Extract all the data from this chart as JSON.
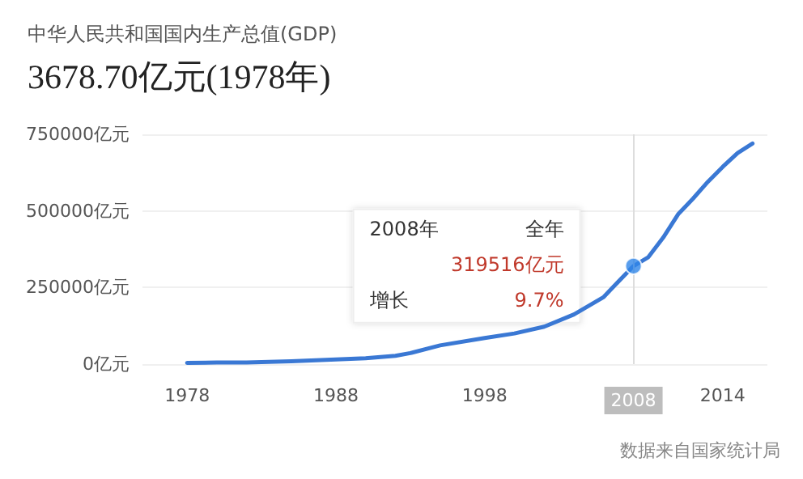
{
  "chart_data": {
    "type": "line",
    "title": "中华人民共和国国内生产总值(GDP)",
    "subtitle": "3678.70亿元(1978年)",
    "x": [
      1978,
      1980,
      1982,
      1985,
      1988,
      1990,
      1992,
      1993,
      1995,
      1998,
      2000,
      2002,
      2004,
      2006,
      2007,
      2008,
      2009,
      2010,
      2011,
      2012,
      2013,
      2014,
      2015,
      2016
    ],
    "series": [
      {
        "color": "#3a78d4",
        "values": [
          4000,
          5000,
          5000,
          9000,
          15000,
          19000,
          27000,
          36000,
          61000,
          85000,
          100000,
          122000,
          162000,
          219000,
          270000,
          320000,
          349000,
          413000,
          489000,
          540000,
          595000,
          644000,
          689000,
          720000
        ]
      },
      {
        "type": "scatter",
        "color": "#2f86e8",
        "x": [
          2008
        ],
        "values": [
          320000
        ]
      }
    ],
    "xlim": [
      1975,
      2017
    ],
    "xticks": [
      1978,
      1988,
      1998,
      2008,
      2014
    ],
    "ylim": [
      0,
      750000
    ],
    "yticks": [
      {
        "value": 0,
        "label": "0亿元"
      },
      {
        "value": 250000,
        "label": "250000亿元"
      },
      {
        "value": 500000,
        "label": "500000亿元"
      },
      {
        "value": 750000,
        "label": "750000亿元"
      }
    ],
    "grid": "y",
    "ref_lines": [
      {
        "axis": "x",
        "value": 2008,
        "color": "#dddddd"
      }
    ],
    "annotations": [
      "2008年",
      "全年",
      "319516亿元",
      "增长",
      "9.7%",
      "数据来自国家统计局"
    ]
  }
}
